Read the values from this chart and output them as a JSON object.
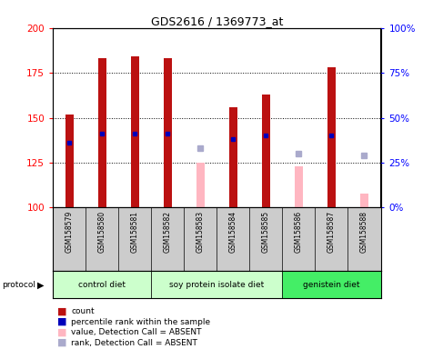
{
  "title": "GDS2616 / 1369773_at",
  "samples": [
    "GSM158579",
    "GSM158580",
    "GSM158581",
    "GSM158582",
    "GSM158583",
    "GSM158584",
    "GSM158585",
    "GSM158586",
    "GSM158587",
    "GSM158588"
  ],
  "count_values": [
    152,
    183,
    184,
    183,
    null,
    156,
    163,
    null,
    178,
    null
  ],
  "count_absent_values": [
    null,
    null,
    null,
    null,
    125,
    null,
    null,
    123,
    null,
    108
  ],
  "rank_present": [
    136,
    141,
    141,
    141,
    null,
    138,
    140,
    null,
    140,
    null
  ],
  "rank_absent": [
    null,
    null,
    null,
    null,
    133,
    null,
    null,
    130,
    null,
    129
  ],
  "ylim_left": [
    100,
    200
  ],
  "ylim_right": [
    0,
    100
  ],
  "yticks_left": [
    100,
    125,
    150,
    175,
    200
  ],
  "yticks_right": [
    0,
    25,
    50,
    75,
    100
  ],
  "bar_width": 0.25,
  "bar_color_present": "#BB1111",
  "bar_color_absent": "#FFB6C1",
  "rank_color_present": "#0000BB",
  "rank_color_absent": "#AAAACC",
  "protocol_groups": [
    {
      "label": "control diet",
      "start": 0,
      "end": 3,
      "color": "#CCFFCC"
    },
    {
      "label": "soy protein isolate diet",
      "start": 3,
      "end": 7,
      "color": "#CCFFCC"
    },
    {
      "label": "genistein diet",
      "start": 7,
      "end": 10,
      "color": "#44EE66"
    }
  ],
  "grid_lines": [
    125,
    150,
    175
  ],
  "background_plot": "#FFFFFF",
  "background_labels": "#CCCCCC"
}
